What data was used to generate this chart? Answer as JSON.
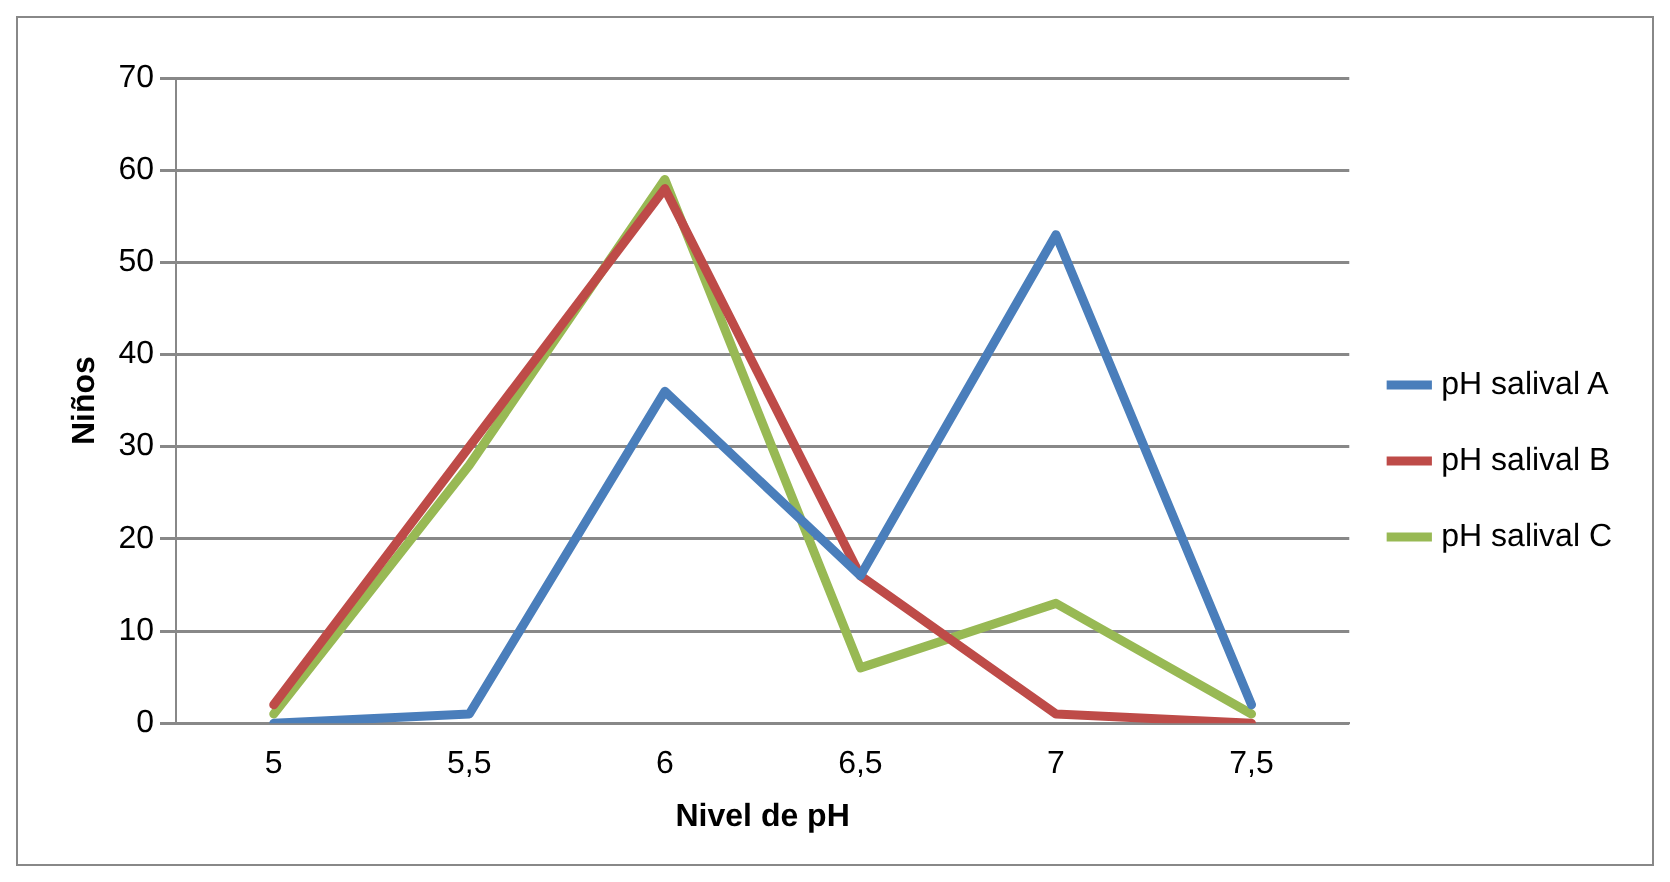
{
  "chart_data": {
    "type": "line",
    "xlabel": "Nivel de pH",
    "ylabel": "Niños",
    "categories": [
      "5",
      "5,5",
      "6",
      "6,5",
      "7",
      "7,5"
    ],
    "series": [
      {
        "name": "pH salival A",
        "color": "#4a7ebb",
        "values": [
          0,
          1,
          36,
          16,
          53,
          2
        ]
      },
      {
        "name": "pH salival B",
        "color": "#be4b48",
        "values": [
          2,
          30,
          58,
          16,
          1,
          0
        ]
      },
      {
        "name": "pH salival C",
        "color": "#98b954",
        "values": [
          1,
          28,
          59,
          6,
          13,
          1
        ]
      }
    ],
    "ylim": [
      0,
      70
    ],
    "yticks": [
      0,
      10,
      20,
      30,
      40,
      50,
      60,
      70
    ],
    "grid": "y",
    "legend": "right",
    "marker": "none",
    "line_style": "solid"
  }
}
